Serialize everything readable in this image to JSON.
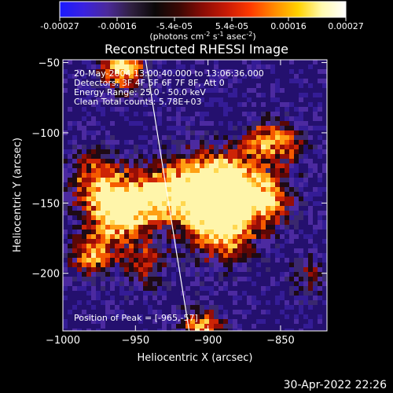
{
  "colorbar": {
    "ticks": [
      "-0.00027",
      "-0.00016",
      "-5.4e-05",
      "5.4e-05",
      "0.00016",
      "0.00027"
    ],
    "units": "(photons cm",
    "units_exp1": "-2",
    "units_mid": " s",
    "units_exp2": "-1",
    "units_mid2": " asec",
    "units_exp3": "-2",
    "units_end": ")",
    "gradient_colors": [
      "#1a1aff",
      "#3a22e0",
      "#4b2a9a",
      "#302040",
      "#0a0808",
      "#3a0804",
      "#8a0c05",
      "#c81a05",
      "#ff3a00",
      "#ff8a00",
      "#ffd200",
      "#fffbb0",
      "#ffffff"
    ]
  },
  "plot": {
    "title": "Reconstructed RHESSI Image",
    "info_lines": [
      "20-May-2004 13:00:40.000 to 13:06:36.000",
      "Detectors: 3F 4F 5F 6F 7F 8F, Att 0",
      "Energy Range: 25.0 - 50.0 keV",
      "Clean     Total counts: 5.78E+03"
    ],
    "peak_label": "Position of Peak = [-965,-57]",
    "xlabel": "Heliocentric X (arcsec)",
    "ylabel": "Heliocentric Y (arcsec)",
    "xlim": [
      -1000,
      -818
    ],
    "ylim": [
      -241,
      -48
    ],
    "xticks": [
      {
        "value": -1000,
        "label": "−1000"
      },
      {
        "value": -950,
        "label": "−950"
      },
      {
        "value": -900,
        "label": "−900"
      },
      {
        "value": -850,
        "label": "−850"
      }
    ],
    "yticks": [
      {
        "value": -50,
        "label": "−50"
      },
      {
        "value": -100,
        "label": "−100"
      },
      {
        "value": -150,
        "label": "−150"
      },
      {
        "value": -200,
        "label": "−200"
      }
    ],
    "limb_line": [
      [
        -943,
        -48
      ],
      [
        -913,
        -241
      ]
    ],
    "limb_color": "#ffffff"
  },
  "footer": {
    "timestamp": "30-Apr-2022 22:26"
  }
}
